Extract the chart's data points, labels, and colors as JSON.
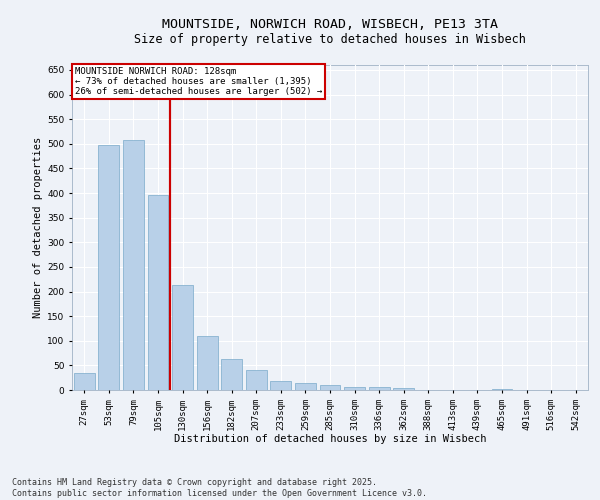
{
  "title_line1": "MOUNTSIDE, NORWICH ROAD, WISBECH, PE13 3TA",
  "title_line2": "Size of property relative to detached houses in Wisbech",
  "xlabel": "Distribution of detached houses by size in Wisbech",
  "ylabel": "Number of detached properties",
  "categories": [
    "27sqm",
    "53sqm",
    "79sqm",
    "105sqm",
    "130sqm",
    "156sqm",
    "182sqm",
    "207sqm",
    "233sqm",
    "259sqm",
    "285sqm",
    "310sqm",
    "336sqm",
    "362sqm",
    "388sqm",
    "413sqm",
    "439sqm",
    "465sqm",
    "491sqm",
    "516sqm",
    "542sqm"
  ],
  "values": [
    35,
    498,
    508,
    395,
    213,
    110,
    62,
    40,
    18,
    15,
    10,
    7,
    7,
    5,
    1,
    0,
    0,
    3,
    0,
    1,
    1
  ],
  "bar_color": "#b8d0e8",
  "bar_edge_color": "#7aaaca",
  "vline_color": "#cc0000",
  "annotation_title": "MOUNTSIDE NORWICH ROAD: 128sqm",
  "annotation_line2": "← 73% of detached houses are smaller (1,395)",
  "annotation_line3": "26% of semi-detached houses are larger (502) →",
  "annotation_box_color": "#cc0000",
  "ylim": [
    0,
    660
  ],
  "yticks": [
    0,
    50,
    100,
    150,
    200,
    250,
    300,
    350,
    400,
    450,
    500,
    550,
    600,
    650
  ],
  "background_color": "#eef2f8",
  "grid_color": "#ffffff",
  "footer_line1": "Contains HM Land Registry data © Crown copyright and database right 2025.",
  "footer_line2": "Contains public sector information licensed under the Open Government Licence v3.0.",
  "title_fontsize": 9.5,
  "subtitle_fontsize": 8.5,
  "axis_label_fontsize": 7.5,
  "tick_fontsize": 6.5,
  "annotation_fontsize": 6.5,
  "footer_fontsize": 6.0
}
